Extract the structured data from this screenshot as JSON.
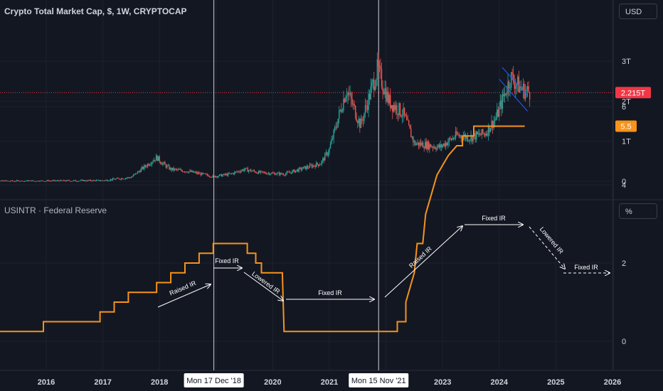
{
  "pane1": {
    "title": "Crypto Total Market Cap, $, 1W, CRYPTOCAP",
    "unit": "USD",
    "last_value": "2.215T"
  },
  "pane2": {
    "title": "USINTR · Federal Reserve",
    "unit": "%",
    "last_value": "5.5"
  },
  "crosshair_labels": [
    "Mon 17 Dec '18",
    "Mon 15 Nov '21"
  ],
  "colors": {
    "background": "#131722",
    "up": "#26a69a",
    "down": "#ef5350",
    "rate_line": "#f7931a",
    "text": "#d1d4dc",
    "grid": "#1e222d",
    "last_price_label": "#f23645"
  },
  "chart_data": [
    {
      "type": "candlestick",
      "title": "Crypto Total Market Cap, $, 1W, CRYPTOCAP",
      "y_ticks": [
        "0",
        "1T",
        "2T",
        "3T"
      ],
      "y_ticks_values": [
        0,
        1,
        2,
        3
      ],
      "ylim": [
        0,
        3.35
      ],
      "x_ticks": [
        "2016",
        "2017",
        "2018",
        "2019",
        "2020",
        "2021",
        "2022",
        "2023",
        "2024",
        "2025",
        "2026"
      ],
      "x_range_years": [
        2015.0,
        2026.0
      ],
      "last_value": 2.215,
      "x_year": [
        2015.0,
        2016.0,
        2017.0,
        2017.5,
        2017.95,
        2018.05,
        2018.2,
        2018.5,
        2018.95,
        2019.25,
        2019.5,
        2019.75,
        2020.2,
        2020.6,
        2020.85,
        2021.0,
        2021.3,
        2021.55,
        2021.85,
        2022.05,
        2022.3,
        2022.5,
        2022.75,
        2022.95,
        2023.25,
        2023.5,
        2023.75,
        2023.95,
        2024.2,
        2024.4,
        2024.55
      ],
      "values_trillions": [
        0.0,
        0.007,
        0.018,
        0.1,
        0.6,
        0.45,
        0.3,
        0.25,
        0.12,
        0.18,
        0.3,
        0.22,
        0.18,
        0.35,
        0.45,
        0.8,
        2.3,
        1.4,
        2.8,
        2.0,
        1.7,
        0.95,
        0.9,
        0.85,
        1.15,
        1.1,
        1.2,
        1.6,
        2.6,
        2.3,
        2.215
      ]
    },
    {
      "type": "line",
      "title": "USINTR · Federal Reserve",
      "y_ticks": [
        "0",
        "2",
        "4",
        "6"
      ],
      "y_ticks_values": [
        0,
        2,
        4,
        6
      ],
      "ylim": [
        -1.3,
        6.2
      ],
      "last_value": 5.5,
      "step_points": [
        [
          2015.0,
          0.25
        ],
        [
          2015.95,
          0.25
        ],
        [
          2015.95,
          0.5
        ],
        [
          2016.95,
          0.5
        ],
        [
          2016.95,
          0.75
        ],
        [
          2017.2,
          0.75
        ],
        [
          2017.2,
          1.0
        ],
        [
          2017.45,
          1.0
        ],
        [
          2017.45,
          1.25
        ],
        [
          2017.95,
          1.25
        ],
        [
          2017.95,
          1.5
        ],
        [
          2018.2,
          1.5
        ],
        [
          2018.2,
          1.75
        ],
        [
          2018.45,
          1.75
        ],
        [
          2018.45,
          2.0
        ],
        [
          2018.7,
          2.0
        ],
        [
          2018.7,
          2.25
        ],
        [
          2018.95,
          2.25
        ],
        [
          2018.95,
          2.5
        ],
        [
          2019.55,
          2.5
        ],
        [
          2019.55,
          2.25
        ],
        [
          2019.7,
          2.25
        ],
        [
          2019.7,
          2.0
        ],
        [
          2019.8,
          2.0
        ],
        [
          2019.8,
          1.75
        ],
        [
          2020.17,
          1.75
        ],
        [
          2020.2,
          0.25
        ],
        [
          2022.2,
          0.25
        ],
        [
          2022.2,
          0.5
        ],
        [
          2022.35,
          0.5
        ],
        [
          2022.35,
          1.0
        ],
        [
          2022.45,
          1.5
        ],
        [
          2022.5,
          1.75
        ],
        [
          2022.55,
          2.5
        ],
        [
          2022.65,
          2.5
        ],
        [
          2022.7,
          3.25
        ],
        [
          2022.8,
          3.75
        ],
        [
          2022.9,
          4.25
        ],
        [
          2023.0,
          4.5
        ],
        [
          2023.1,
          4.75
        ],
        [
          2023.25,
          5.0
        ],
        [
          2023.35,
          5.0
        ],
        [
          2023.35,
          5.25
        ],
        [
          2023.55,
          5.25
        ],
        [
          2023.55,
          5.5
        ],
        [
          2024.45,
          5.5
        ]
      ],
      "annotations": [
        {
          "text": "Raised IR"
        },
        {
          "text": "Fixed IR"
        },
        {
          "text": "Lowered IR"
        },
        {
          "text": "Fixed IR"
        },
        {
          "text": "Raised IR"
        },
        {
          "text": "Fixed IR"
        },
        {
          "text": "Lowered IR"
        },
        {
          "text": "Fixed IR"
        }
      ]
    }
  ]
}
